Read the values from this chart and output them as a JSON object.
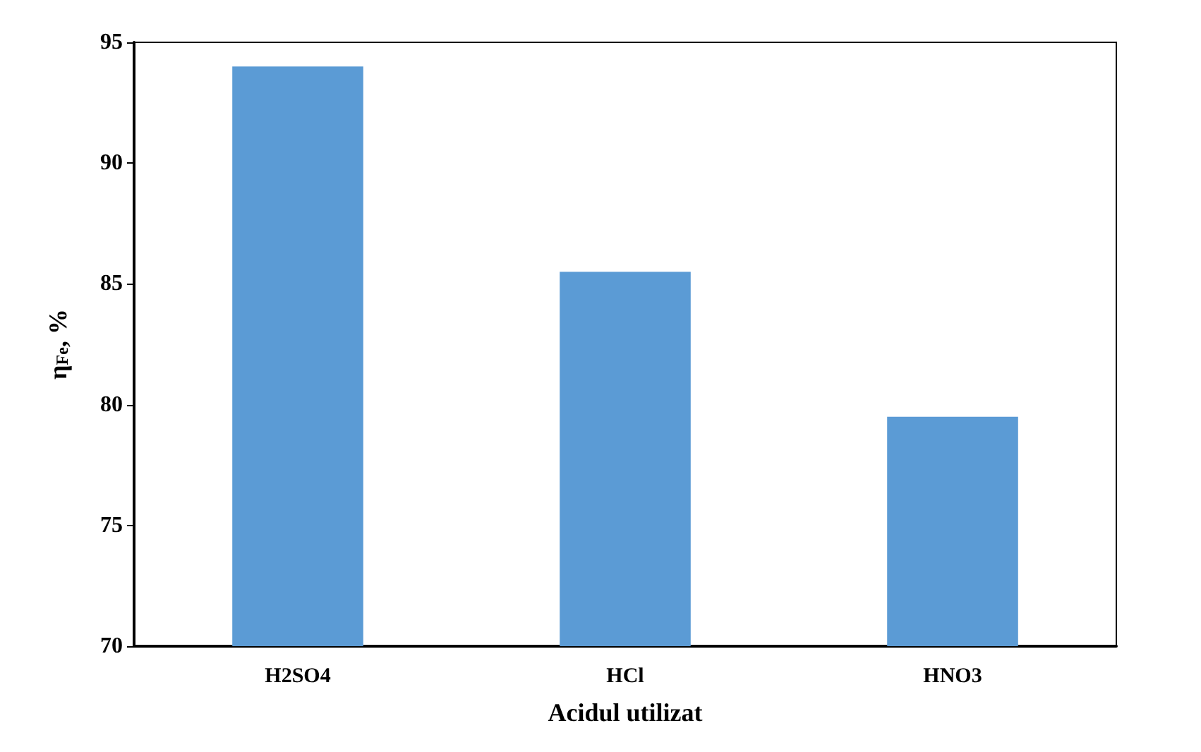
{
  "chart_data": {
    "type": "bar",
    "xlabel": "Acidul utilizat",
    "ylabel": "η$_{Fe}$, %",
    "categories": [
      "H2SO4",
      "HCl",
      "HNO3"
    ],
    "values": [
      94,
      85.5,
      79.5
    ],
    "color": "#5b9bd5",
    "ylim": [
      70,
      95
    ],
    "yticks": [
      70,
      75,
      80,
      85,
      90,
      95
    ],
    "grid": false
  }
}
